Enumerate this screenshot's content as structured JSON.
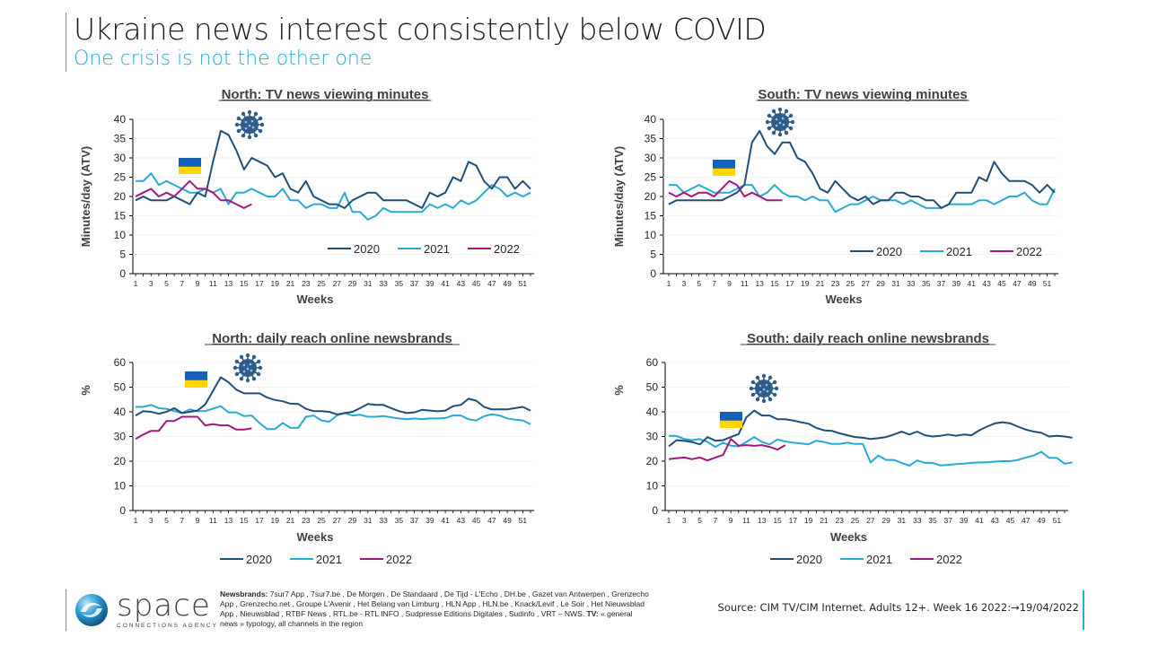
{
  "header": {
    "title": "Ukraine news interest consistently below COVID",
    "subtitle": "One crisis is not the other one"
  },
  "footer": {
    "logo_word": "space",
    "logo_tagline": "CONNECTIONS AGENCY",
    "notes_label_newsbrands": "Newsbrands:",
    "notes_newsbrands": " 7sur7 App ,  7sur7.be ,  De Morgen  ,  De Standaard  ,  De Tijd - L'Echo ,  DH.be ,  Gazet  van Antwerpen ,  Grenzecho App ,  Grenzecho.net ,  Groupe L'Avenir ,  Het Belang  van Limburg ,  HLN App ,  HLN.be ,  Knack/Levif ,  Le Soir ,  Het Nieuwsblad App ,  Nieuwsblad ,  RTBF News ,  RTL.be - RTL INFO ,  Sudpresse Editions Digitales ,  Sudinfo ,  VRT – NWS.",
    "notes_label_tv": "TV:",
    "notes_tv": " « general news » typology, all channels in the region",
    "source": "Source: CIM TV/CIM Internet. Adults 12+. Week 16 2022:→19/04/2022"
  },
  "colors": {
    "series_2020": "#1f4e79",
    "series_2021": "#29a9d6",
    "series_2022": "#a0187d",
    "accent": "#29a9d6",
    "flag_blue": "#1660b8",
    "flag_yellow": "#ffd500",
    "covid_icon": "#2f5d8a"
  },
  "icons": {
    "ukraine": "ukraine-flag-icon",
    "covid": "coronavirus-icon"
  },
  "chart_data": [
    {
      "id": "north_tv",
      "type": "line",
      "title": "North: TV news viewing minutes",
      "xlabel": "Weeks",
      "ylabel": "Minutes/day (ATV)",
      "ylim": [
        0,
        40
      ],
      "yticks": [
        0,
        5,
        10,
        15,
        20,
        25,
        30,
        35,
        40
      ],
      "xticks": [
        1,
        3,
        5,
        7,
        9,
        11,
        13,
        15,
        17,
        19,
        21,
        23,
        25,
        27,
        29,
        31,
        33,
        35,
        37,
        39,
        41,
        43,
        45,
        47,
        49,
        51
      ],
      "legend_position": "bottom-right-inside",
      "series": [
        {
          "name": "2020",
          "values": [
            19,
            20,
            19,
            19,
            19,
            20,
            19,
            18,
            21,
            20,
            29,
            37,
            36,
            32,
            27,
            30,
            29,
            28,
            25,
            26,
            22,
            21,
            24,
            20,
            19,
            18,
            18,
            17,
            19,
            20,
            21,
            21,
            19,
            19,
            19,
            19,
            18,
            17,
            21,
            20,
            21,
            25,
            24,
            29,
            28,
            24,
            22,
            25,
            25,
            22,
            24,
            22
          ]
        },
        {
          "name": "2021",
          "values": [
            24,
            24,
            26,
            23,
            24,
            23,
            22,
            21,
            21,
            22,
            21,
            22,
            18,
            21,
            21,
            22,
            21,
            20,
            20,
            22,
            19,
            19,
            17,
            18,
            18,
            17,
            17,
            21,
            16,
            16,
            14,
            15,
            17,
            16,
            16,
            16,
            16,
            16,
            18,
            17,
            18,
            17,
            19,
            18,
            19,
            21,
            23,
            22,
            20,
            21,
            20,
            21
          ]
        },
        {
          "name": "2022",
          "values": [
            20,
            21,
            22,
            20,
            21,
            20,
            22,
            24,
            22,
            22,
            21,
            19,
            19,
            18,
            17,
            18
          ]
        }
      ],
      "annotations": [
        "ukraine-flag near week 7-9",
        "coronavirus icon near week 12-15"
      ]
    },
    {
      "id": "south_tv",
      "type": "line",
      "title": "South: TV news viewing minutes",
      "xlabel": "Weeks",
      "ylabel": "Minutes/day (ATV)",
      "ylim": [
        0,
        40
      ],
      "yticks": [
        0,
        5,
        10,
        15,
        20,
        25,
        30,
        35,
        40
      ],
      "xticks": [
        1,
        3,
        5,
        7,
        9,
        11,
        13,
        15,
        17,
        19,
        21,
        23,
        25,
        27,
        29,
        31,
        33,
        35,
        37,
        39,
        41,
        43,
        45,
        47,
        49,
        51
      ],
      "legend_position": "bottom-right-inside",
      "series": [
        {
          "name": "2020",
          "values": [
            18,
            19,
            19,
            19,
            19,
            19,
            19,
            19,
            20,
            21,
            23,
            34,
            37,
            33,
            31,
            34,
            34,
            30,
            29,
            26,
            22,
            21,
            24,
            22,
            20,
            19,
            20,
            18,
            19,
            19,
            21,
            21,
            20,
            20,
            19,
            19,
            17,
            18,
            21,
            21,
            21,
            25,
            24,
            29,
            26,
            24,
            24,
            24,
            23,
            21,
            23,
            21
          ]
        },
        {
          "name": "2021",
          "values": [
            23,
            23,
            21,
            22,
            23,
            22,
            21,
            21,
            21,
            22,
            23,
            23,
            20,
            21,
            23,
            21,
            20,
            20,
            19,
            20,
            19,
            19,
            16,
            17,
            18,
            18,
            19,
            20,
            19,
            19,
            19,
            18,
            19,
            18,
            17,
            17,
            17,
            18,
            18,
            18,
            18,
            19,
            19,
            18,
            19,
            20,
            20,
            21,
            19,
            18,
            18,
            22
          ]
        },
        {
          "name": "2022",
          "values": [
            21,
            20,
            21,
            20,
            21,
            21,
            20,
            22,
            24,
            23,
            20,
            21,
            20,
            19,
            19,
            19
          ]
        }
      ],
      "annotations": [
        "ukraine-flag near week 7-9",
        "coronavirus icon near week 13-15"
      ]
    },
    {
      "id": "north_reach",
      "type": "line",
      "title": "North: daily reach online newsbrands",
      "xlabel": "Weeks",
      "ylabel": "%",
      "ylim": [
        0,
        60
      ],
      "yticks": [
        0,
        10,
        20,
        30,
        40,
        50,
        60
      ],
      "xticks": [
        1,
        3,
        5,
        7,
        9,
        11,
        13,
        15,
        17,
        19,
        21,
        23,
        25,
        27,
        29,
        31,
        33,
        35,
        37,
        39,
        41,
        43,
        45,
        47,
        49,
        51
      ],
      "legend_position": "bottom",
      "series": [
        {
          "name": "2020",
          "values": [
            38.5,
            40.3,
            40,
            39.2,
            40,
            41.5,
            39.5,
            40,
            40.5,
            43,
            48.5,
            54,
            52,
            49,
            47.5,
            47.5,
            47.5,
            45.8,
            44.8,
            44.3,
            43.3,
            43.2,
            41.2,
            40.3,
            40.3,
            40,
            39,
            39.5,
            40,
            41.5,
            43.2,
            42.8,
            42.8,
            41.5,
            40.3,
            39.5,
            39.8,
            40.8,
            40.5,
            40.2,
            40.5,
            42.3,
            42.8,
            45.3,
            44.5,
            42,
            41,
            41,
            41,
            41.5,
            42,
            40.5
          ]
        },
        {
          "name": "2021",
          "values": [
            42,
            42,
            42.8,
            41.5,
            41.2,
            40.3,
            39.5,
            41,
            40.3,
            40.3,
            41.3,
            42.3,
            39.8,
            39.8,
            38.3,
            38.5,
            35.5,
            33,
            33,
            35.5,
            33.5,
            33.5,
            38,
            38.5,
            36.5,
            36,
            38.5,
            39.5,
            38.5,
            38.8,
            38,
            38,
            38.3,
            37.8,
            37.3,
            37,
            37.3,
            37,
            37.3,
            37.3,
            37.5,
            38.5,
            38.5,
            37,
            36.5,
            38.2,
            39,
            38.5,
            37.3,
            36.8,
            36.5,
            35
          ]
        },
        {
          "name": "2022",
          "values": [
            29,
            30.8,
            32.3,
            32.3,
            36.3,
            36.3,
            38,
            38,
            38,
            34.5,
            35,
            34.5,
            34.5,
            32.8,
            32.8,
            33.3
          ]
        }
      ],
      "annotations": [
        "ukraine-flag near week 7-9",
        "coronavirus icon near week 12-14"
      ]
    },
    {
      "id": "south_reach",
      "type": "line",
      "title": "South: daily reach online newsbrands",
      "xlabel": "Weeks",
      "ylabel": "%",
      "ylim": [
        0,
        60
      ],
      "yticks": [
        0,
        10,
        20,
        30,
        40,
        50,
        60
      ],
      "xticks": [
        1,
        3,
        5,
        7,
        9,
        11,
        13,
        15,
        17,
        19,
        21,
        23,
        25,
        27,
        29,
        31,
        33,
        35,
        37,
        39,
        41,
        43,
        45,
        47,
        49,
        51
      ],
      "legend_position": "bottom",
      "series": [
        {
          "name": "2020",
          "values": [
            26,
            28.5,
            28.2,
            27.8,
            26.8,
            29.8,
            28.3,
            28.5,
            29.8,
            31,
            37.8,
            40.5,
            38.5,
            38.5,
            37,
            37,
            36.5,
            35.8,
            35.2,
            33.5,
            32.5,
            32.3,
            31.3,
            30.5,
            29.8,
            29.5,
            29,
            29.3,
            29.8,
            30.8,
            32,
            30.8,
            32,
            30.5,
            30,
            30.3,
            30.8,
            30.3,
            30.8,
            30.5,
            32.5,
            34,
            35.3,
            35.8,
            35.3,
            34,
            32.8,
            32,
            31.5,
            30,
            30.3,
            30,
            29.5
          ]
        },
        {
          "name": "2021",
          "values": [
            30.3,
            30.2,
            29,
            28.5,
            29,
            27.8,
            25.8,
            27.5,
            26.3,
            26,
            27.8,
            29.8,
            27.8,
            26.8,
            28.8,
            28,
            27.5,
            27.2,
            26.8,
            28.3,
            27.8,
            27,
            27,
            27.5,
            27,
            27,
            19.5,
            22.3,
            20.5,
            20.5,
            19.3,
            18.2,
            20.3,
            19.3,
            19.3,
            18.3,
            18.5,
            18.8,
            19,
            19.3,
            19.5,
            19.5,
            19.8,
            20,
            20,
            20.5,
            21.5,
            22.3,
            23.8,
            21.3,
            21.3,
            19,
            19.5
          ]
        },
        {
          "name": "2022",
          "values": [
            20.8,
            21.2,
            21.5,
            20.8,
            21.5,
            20.3,
            21.5,
            22.5,
            29,
            26.3,
            26.5,
            26.2,
            26.5,
            25.8,
            24.7,
            26.5
          ]
        }
      ],
      "annotations": [
        "ukraine-flag near week 8-10",
        "coronavirus icon near week 12-14"
      ]
    }
  ]
}
